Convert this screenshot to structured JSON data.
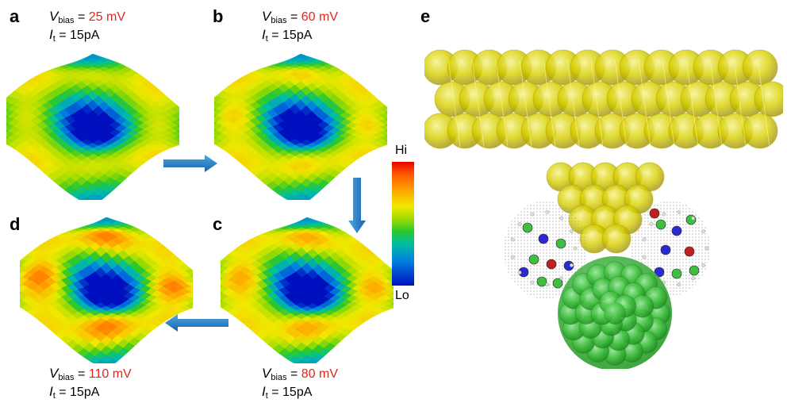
{
  "panels": {
    "a": {
      "letter": "a",
      "v_symbol": "V",
      "v_sub": "bias",
      "v_value": "25 mV",
      "i_symbol": "I",
      "i_sub": "t",
      "i_value": "15pA",
      "peak_level": 0.25
    },
    "b": {
      "letter": "b",
      "v_symbol": "V",
      "v_sub": "bias",
      "v_value": "60 mV",
      "i_symbol": "I",
      "i_sub": "t",
      "i_value": "15pA",
      "peak_level": 0.5
    },
    "c": {
      "letter": "c",
      "v_symbol": "V",
      "v_sub": "bias",
      "v_value": "80 mV",
      "i_symbol": "I",
      "i_sub": "t",
      "i_value": "15pA",
      "peak_level": 0.75
    },
    "d": {
      "letter": "d",
      "v_symbol": "V",
      "v_sub": "bias",
      "v_value": "110 mV",
      "i_symbol": "I",
      "i_sub": "t",
      "i_value": "15pA",
      "peak_level": 1.0
    },
    "e": {
      "letter": "e"
    }
  },
  "colorbar": {
    "hi_label": "Hi",
    "lo_label": "Lo"
  },
  "colors": {
    "bias_value": "#e8231a",
    "arrow": "#1c7fc4",
    "gold_atoms": "#d8d000",
    "cluster": "#3fbf3f"
  }
}
